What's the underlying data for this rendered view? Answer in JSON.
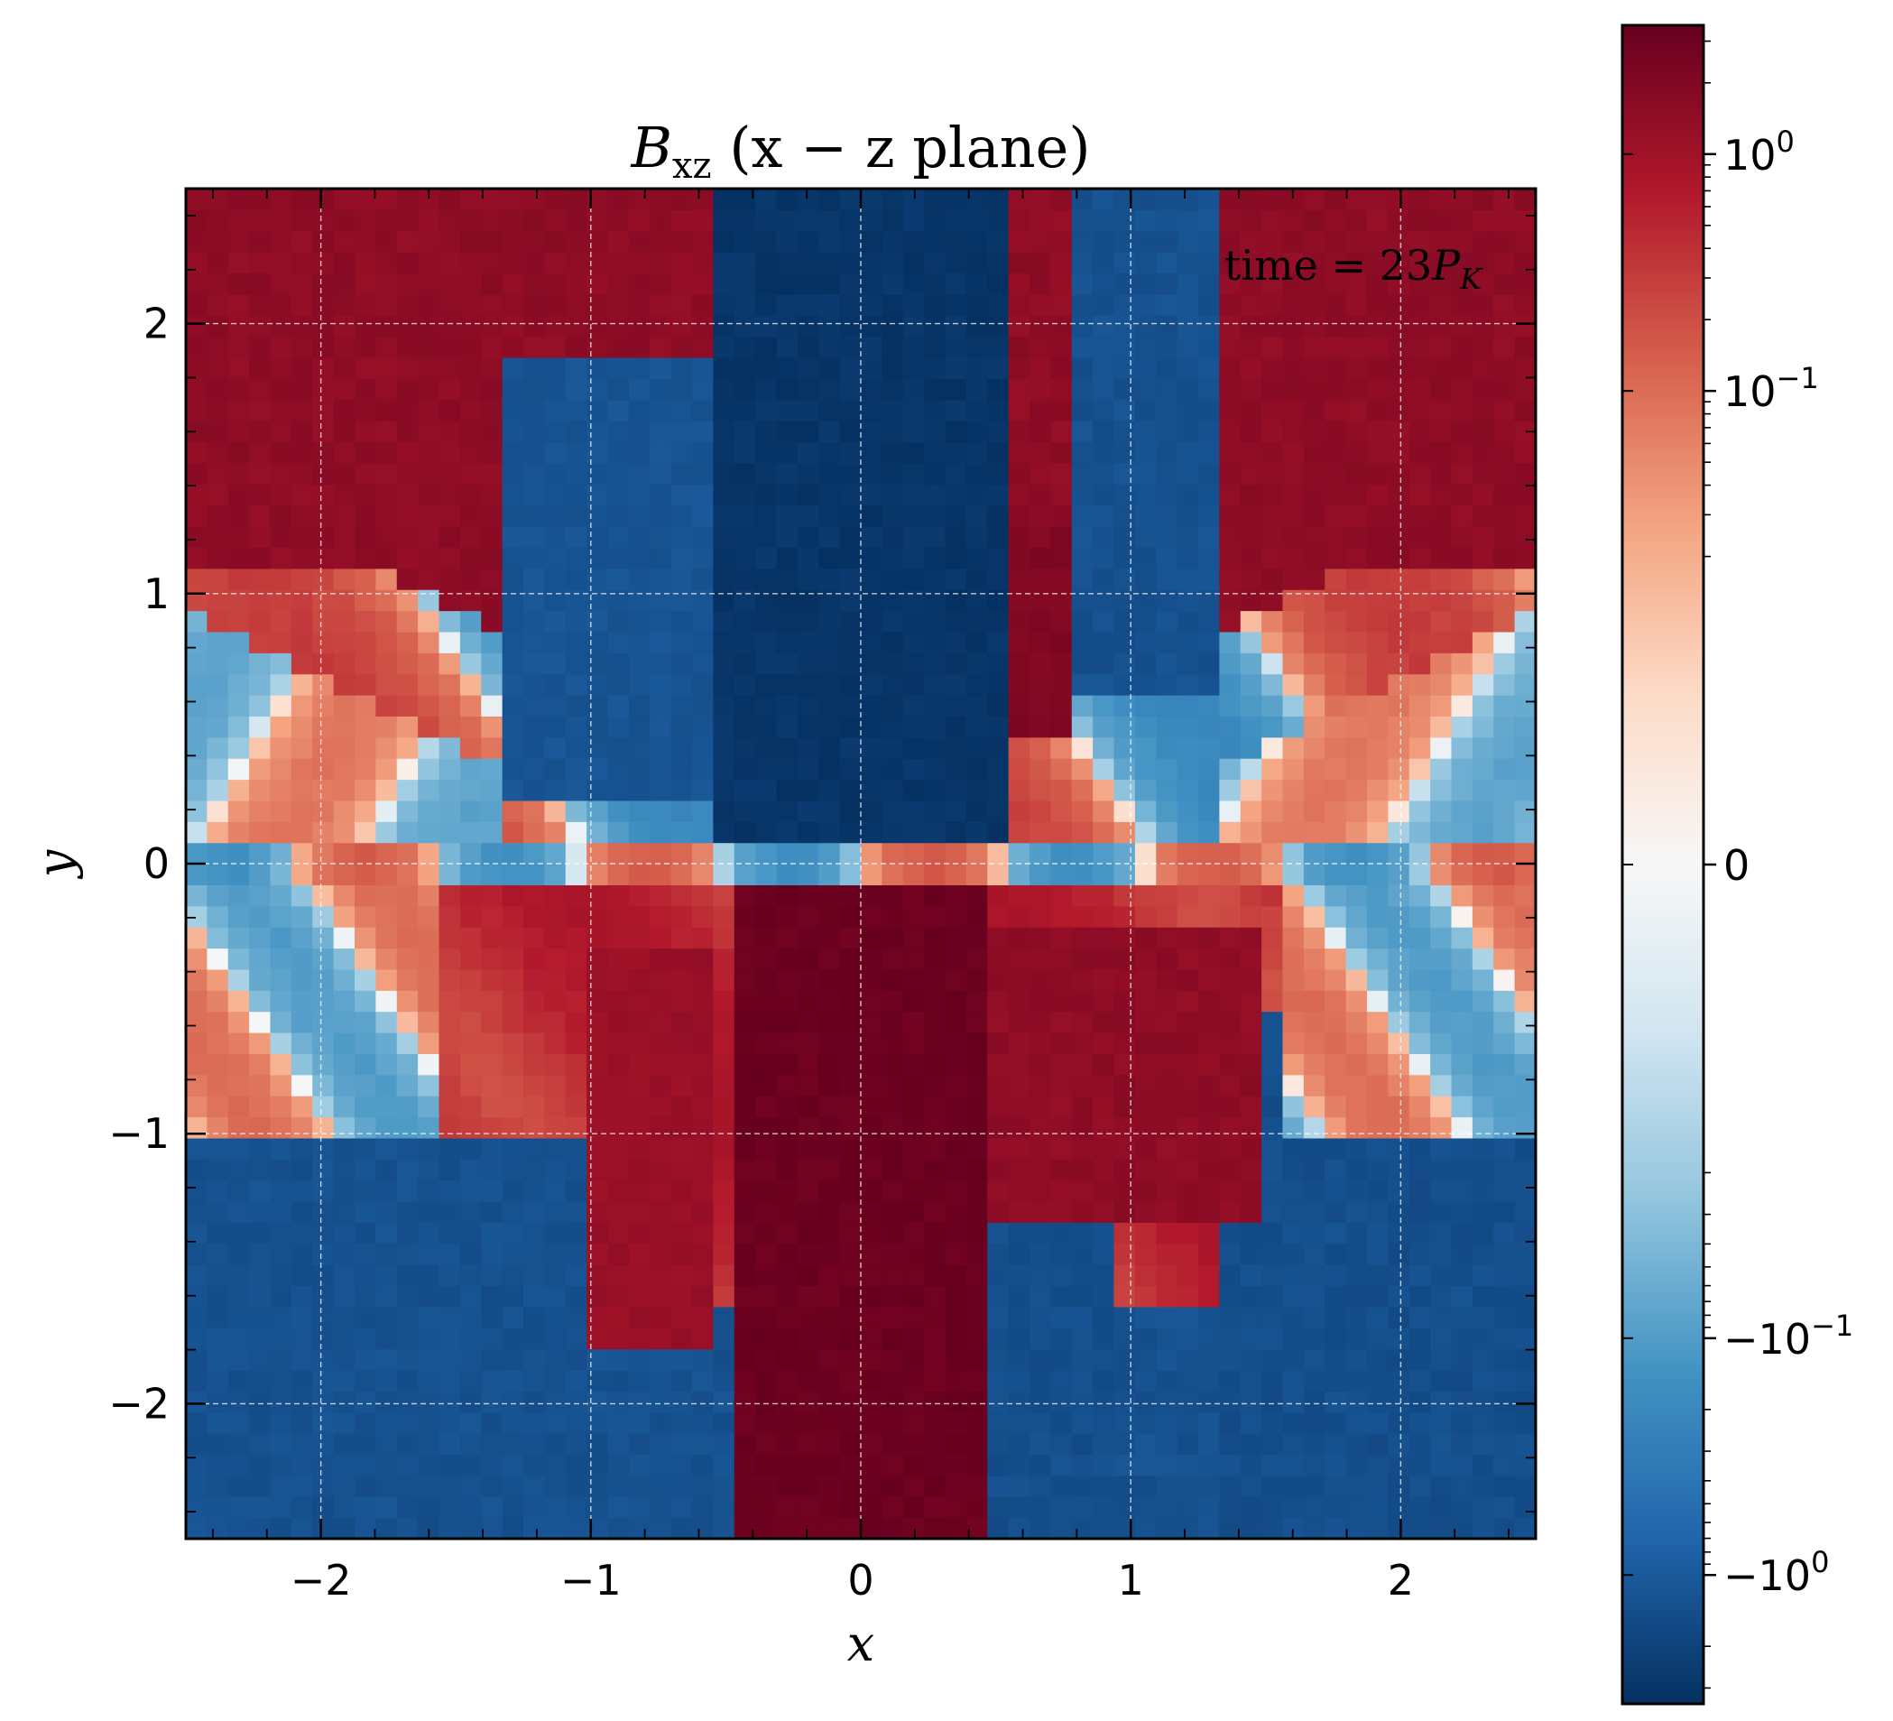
{
  "chart_data": {
    "type": "heatmap",
    "title": {
      "symbol": "B",
      "subscript": "xz",
      "rest": "(x − z plane)"
    },
    "xlabel": "x",
    "ylabel": "y",
    "xlim": [
      -2.5,
      2.5
    ],
    "ylim": [
      -2.5,
      2.5
    ],
    "x_ticks": [
      -2,
      -1,
      0,
      1,
      2
    ],
    "y_ticks": [
      -2,
      -1,
      0,
      1,
      2
    ],
    "x_tick_labels": [
      "−2",
      "−1",
      "0",
      "1",
      "2"
    ],
    "y_tick_labels": [
      "−2",
      "−1",
      "0",
      "1",
      "2"
    ],
    "grid": true,
    "annotation": "time = 23P_K",
    "annotation_parts": {
      "prefix": "time = 23",
      "symbol": "P",
      "subscript": "K"
    },
    "grid_resolution": [
      64,
      64
    ],
    "colormap": "RdBu_r",
    "color_scale": "symlog",
    "value_range": [
      -3.5,
      3.5
    ],
    "colorbar": {
      "ticks": [
        1,
        0.1,
        0,
        -0.1,
        -1
      ],
      "tick_labels": [
        {
          "base": "10",
          "exp": "0"
        },
        {
          "base": "10",
          "exp": "−1"
        },
        {
          "base": "0",
          "exp": ""
        },
        {
          "base": "−10",
          "exp": "−1"
        },
        {
          "base": "−10",
          "exp": "0"
        }
      ]
    },
    "field_description_regions": [
      {
        "region": "upper center column",
        "sign": "negative",
        "magnitude": "strong"
      },
      {
        "region": "lower center column",
        "sign": "positive",
        "magnitude": "strong"
      },
      {
        "region": "upper-left / upper-right wedges",
        "sign": "positive",
        "magnitude": "moderate"
      },
      {
        "region": "lower-left / lower-right bottom",
        "sign": "negative",
        "magnitude": "moderate"
      },
      {
        "region": "left & right midplane",
        "sign": "mixed",
        "magnitude": "weak"
      }
    ]
  },
  "colors": {
    "cmap_stops": [
      "#053061",
      "#2166ac",
      "#4393c3",
      "#92c5de",
      "#d1e5f0",
      "#f7f7f7",
      "#fddbc7",
      "#f4a582",
      "#d6604d",
      "#b2182b",
      "#67001f"
    ]
  }
}
